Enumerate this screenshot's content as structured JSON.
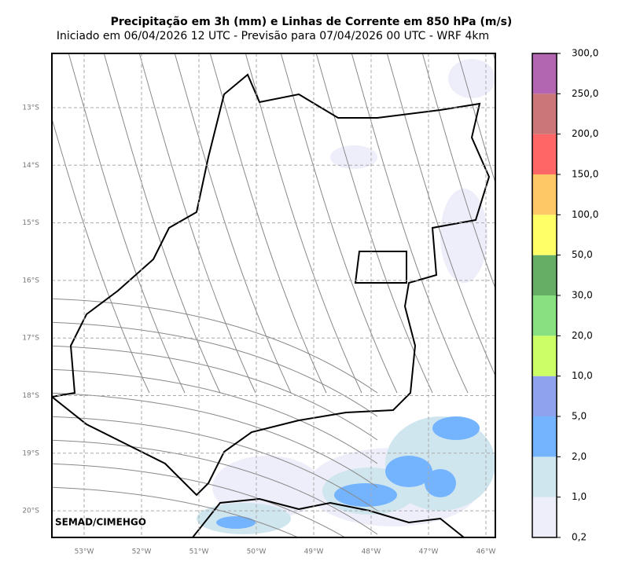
{
  "header": {
    "title": "Precipitação em 3h (mm) e Linhas de Corrente em 850 hPa (m/s)",
    "subtitle": "Iniciado em 06/04/2026 12 UTC - Previsão para 07/04/2026 00 UTC - WRF 4km"
  },
  "map": {
    "lon_labels": [
      "53°W",
      "52°W",
      "51°W",
      "50°W",
      "49°W",
      "48°W",
      "47°W",
      "46°W"
    ],
    "lat_labels": [
      "13°S",
      "14°S",
      "15°S",
      "16°S",
      "17°S",
      "18°S",
      "19°S",
      "20°S"
    ],
    "grid": true,
    "credit": "SEMAD/CIMEHGO"
  },
  "colorbar": {
    "labels": [
      "0,2",
      "1,0",
      "2,0",
      "5,0",
      "10,0",
      "20,0",
      "30,0",
      "50,0",
      "100,0",
      "150,0",
      "200,0",
      "250,0",
      "300,0"
    ],
    "colors": [
      "#eeeefa",
      "#d0e6ef",
      "#74b4ff",
      "#8ea3ec",
      "#ccff66",
      "#88e080",
      "#66ad66",
      "#ffff66",
      "#ffc866",
      "#ff6666",
      "#cc7777",
      "#b266b2"
    ]
  }
}
